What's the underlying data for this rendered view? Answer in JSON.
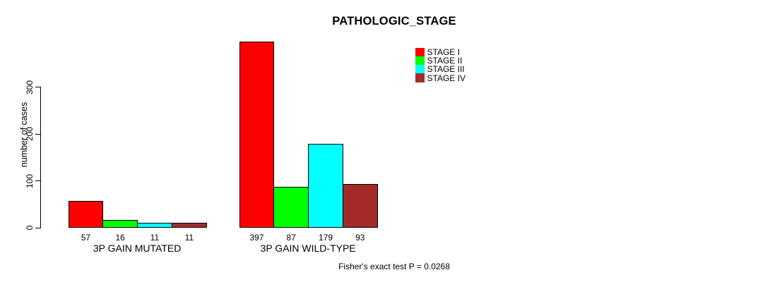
{
  "chart_data": {
    "type": "bar",
    "title": "PATHOLOGIC_STAGE",
    "xlabel": "",
    "ylabel": "number of cases",
    "ylim": [
      0,
      397
    ],
    "yticks": [
      0,
      100,
      200,
      300
    ],
    "grid": false,
    "legend_position": "top-right",
    "categories": [
      "3P GAIN MUTATED",
      "3P GAIN WILD-TYPE"
    ],
    "series": [
      {
        "name": "STAGE I",
        "color": "#ff0000",
        "values": [
          57,
          397
        ]
      },
      {
        "name": "STAGE II",
        "color": "#00ff00",
        "values": [
          16,
          87
        ]
      },
      {
        "name": "STAGE III",
        "color": "#00ffff",
        "values": [
          11,
          179
        ]
      },
      {
        "name": "STAGE IV",
        "color": "#a52a2a",
        "values": [
          11,
          93
        ]
      }
    ],
    "bar_border_color": "#000000",
    "background": "#ffffff",
    "annotation": "Fisher's exact test P = 0.0268"
  }
}
